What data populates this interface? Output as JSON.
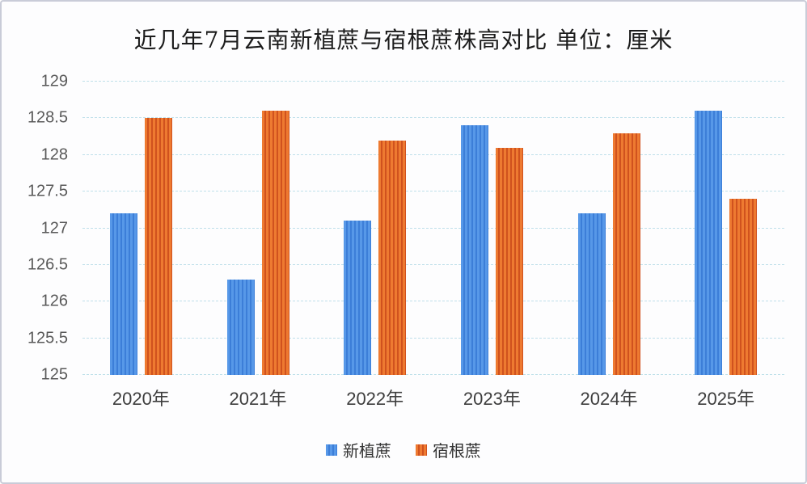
{
  "title": "近几年7月云南新植蔗与宿根蔗株高对比 单位：厘米",
  "colors": {
    "blue_stripe_light": "#5798e8",
    "blue_stripe_dark": "#3c7ed8",
    "orange_stripe_light": "#ee7a31",
    "orange_stripe_dark": "#d0521e",
    "gridline": "#bfe0ea",
    "axis_text": "#595959",
    "x_axis_text": "#3d3d3d",
    "title_text": "#1c1c1c",
    "frame_border": "#c9ccd8"
  },
  "chart_data": {
    "type": "bar",
    "title": "近几年7月云南新植蔗与宿根蔗株高对比 单位：厘米",
    "unit": "厘米",
    "categories": [
      "2020年",
      "2021年",
      "2022年",
      "2023年",
      "2024年",
      "2025年"
    ],
    "series": [
      {
        "name": "新植蔗",
        "values": [
          127.2,
          126.3,
          127.1,
          128.4,
          127.2,
          128.6
        ],
        "color_light": "#5798e8",
        "color_dark": "#3c7ed8"
      },
      {
        "name": "宿根蔗",
        "values": [
          128.5,
          128.6,
          128.2,
          128.1,
          128.3,
          127.4
        ],
        "color_light": "#ee7a31",
        "color_dark": "#d0521e"
      }
    ],
    "xlabel": "",
    "ylabel": "",
    "ylim": [
      125,
      129
    ],
    "ytick_step": 0.5,
    "ytick_labels": [
      "125",
      "125.5",
      "126",
      "126.5",
      "127",
      "127.5",
      "128",
      "128.5",
      "129"
    ],
    "grid": true,
    "gridline_style": "dashed",
    "legend_position": "bottom",
    "legend_labels": [
      "新植蔗",
      "宿根蔗"
    ]
  }
}
